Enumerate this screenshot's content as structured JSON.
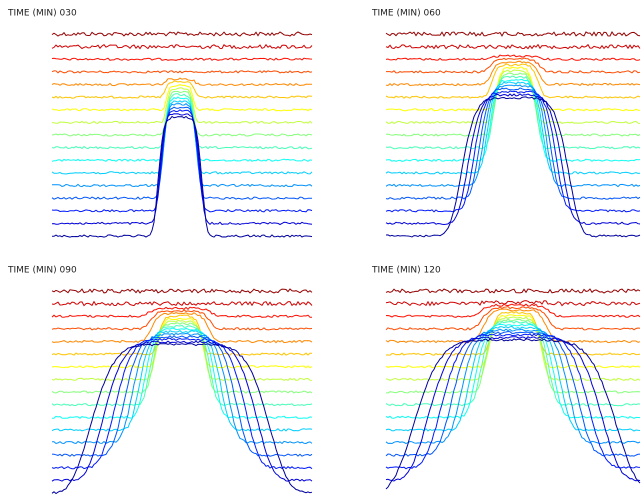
{
  "panels": [
    {
      "label": "TIME (MIN) 030"
    },
    {
      "label": "TIME (MIN) 060"
    },
    {
      "label": "TIME (MIN) 090"
    },
    {
      "label": "TIME (MIN) 120"
    }
  ]
}
